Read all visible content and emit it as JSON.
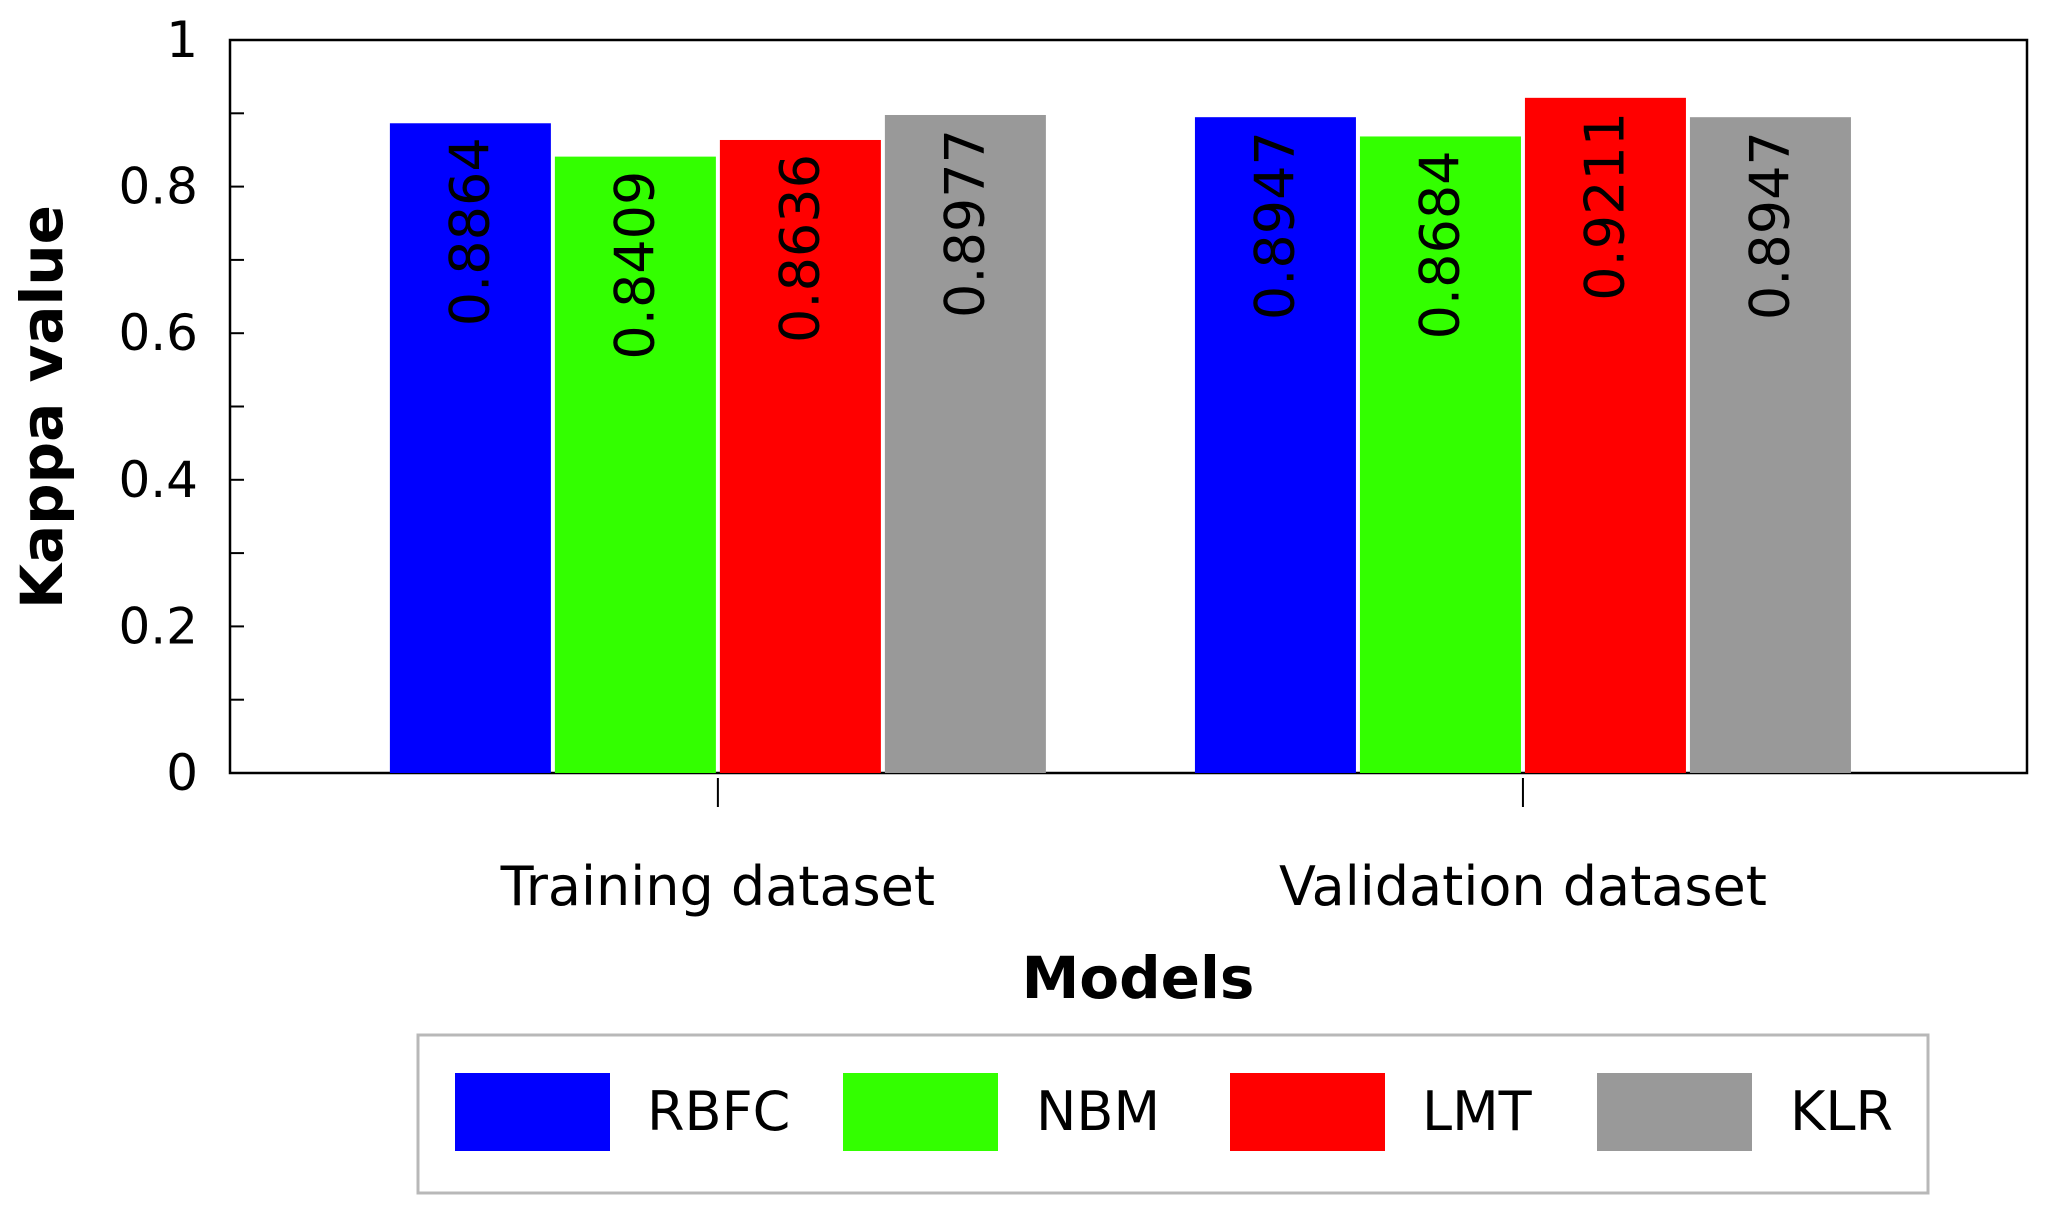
{
  "chart_data": {
    "type": "bar",
    "title": "",
    "xlabel": "Models",
    "ylabel": "Kappa value",
    "ylim": [
      0,
      1
    ],
    "yticks": [
      "0",
      "0.2",
      "0.4",
      "0.6",
      "0.8",
      "1"
    ],
    "categories": [
      "Training dataset",
      "Validation dataset"
    ],
    "series": [
      {
        "name": "RBFC",
        "color": "#0000ff",
        "values": [
          0.8864,
          0.8947
        ],
        "labels": [
          "0.8864",
          "0.8947"
        ]
      },
      {
        "name": "NBM",
        "color": "#33ff00",
        "values": [
          0.8409,
          0.8684
        ],
        "labels": [
          "0.8409",
          "0.8684"
        ]
      },
      {
        "name": "LMT",
        "color": "#ff0000",
        "values": [
          0.8636,
          0.9211
        ],
        "labels": [
          "0.8636",
          "0.9211"
        ]
      },
      {
        "name": "KLR",
        "color": "#999999",
        "values": [
          0.8977,
          0.8947
        ],
        "labels": [
          "0.8977",
          "0.8947"
        ]
      }
    ],
    "legend_position": "bottom",
    "grid": false
  }
}
